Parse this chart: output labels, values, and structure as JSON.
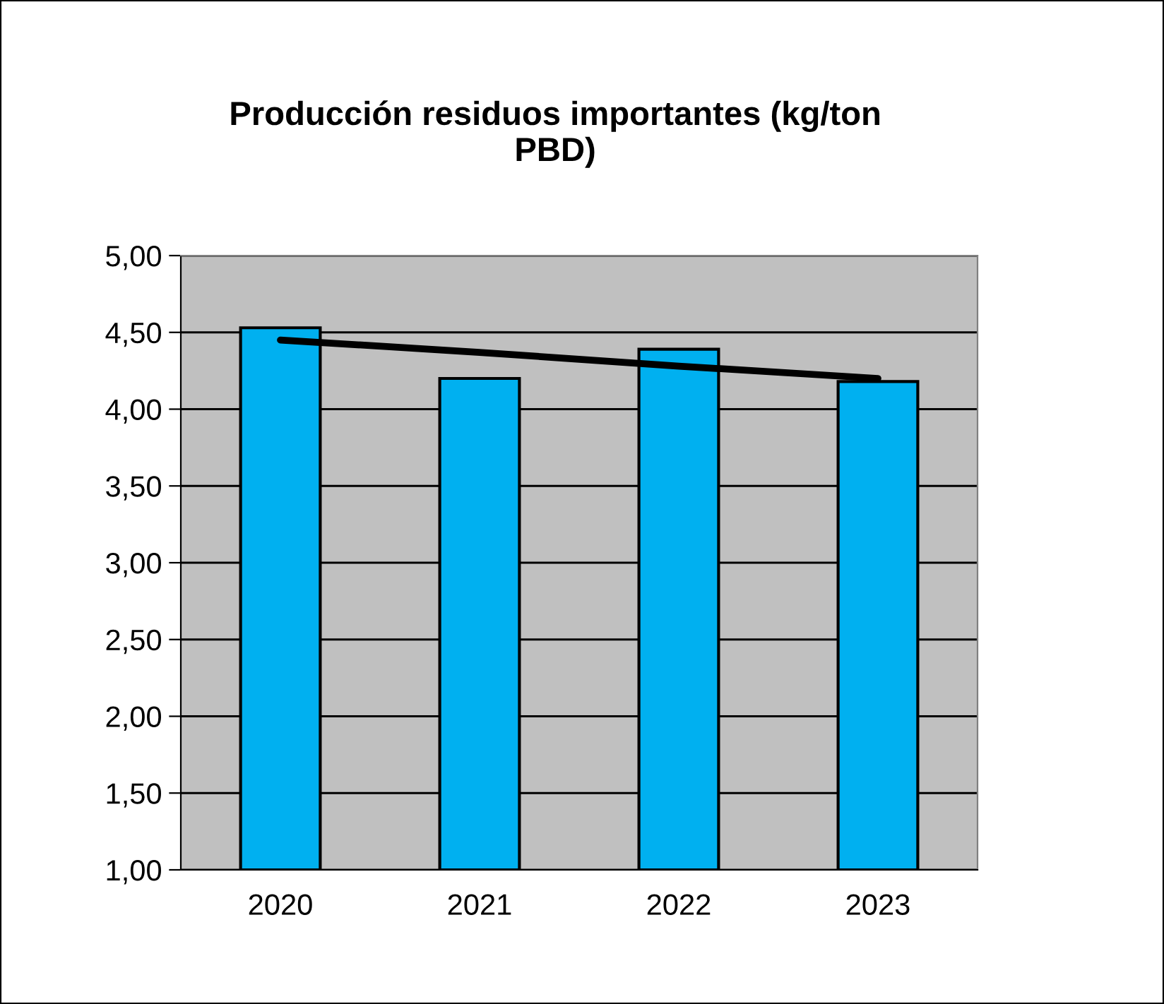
{
  "chart_data": {
    "type": "bar",
    "title": "Producción residuos importantes (kg/ton\nPBD)",
    "categories": [
      "2020",
      "2021",
      "2022",
      "2023"
    ],
    "series": [
      {
        "color": "#00b0f0",
        "values": [
          4.53,
          4.2,
          4.39,
          4.18
        ]
      },
      {
        "type": "line",
        "color": "#000000",
        "values": [
          4.45,
          4.37,
          4.28,
          4.2
        ]
      }
    ],
    "ylim": [
      1.0,
      5.0
    ],
    "yticks": [
      {
        "value": 1.0,
        "label": "1,00"
      },
      {
        "value": 1.5,
        "label": "1,50"
      },
      {
        "value": 2.0,
        "label": "2,00"
      },
      {
        "value": 2.5,
        "label": "2,50"
      },
      {
        "value": 3.0,
        "label": "3,00"
      },
      {
        "value": 3.5,
        "label": "3,50"
      },
      {
        "value": 4.0,
        "label": "4,00"
      },
      {
        "value": 4.5,
        "label": "4,50"
      },
      {
        "value": 5.0,
        "label": "5,00"
      }
    ],
    "grid": "y",
    "legend": false
  }
}
